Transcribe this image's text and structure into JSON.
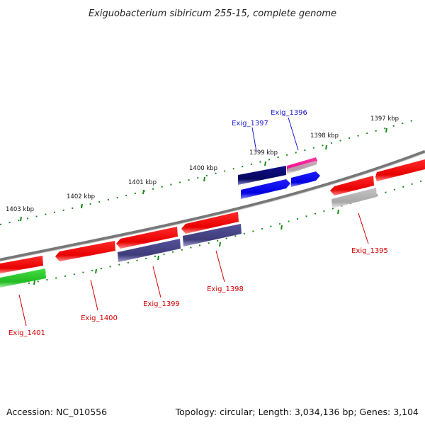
{
  "title": "Exiguobacterium sibiricum 255-15, complete genome",
  "footer": {
    "accession": "Accession: NC_010556",
    "info": "Topology: circular; Length: 3,034,136 bp; Genes: 3,104"
  },
  "ruler_labels": [
    "1397 kbp",
    "1398 kbp",
    "1399 kbp",
    "1400 kbp",
    "1401 kbp",
    "1402 kbp",
    "1403 kbp"
  ],
  "gene_labels": [
    {
      "id": "Exig_1396",
      "color": "#1a1acc"
    },
    {
      "id": "Exig_1397",
      "color": "#1a1acc"
    },
    {
      "id": "Exig_1395",
      "color": "#d40000"
    },
    {
      "id": "Exig_1398",
      "color": "#d40000"
    },
    {
      "id": "Exig_1399",
      "color": "#d40000"
    },
    {
      "id": "Exig_1400",
      "color": "#d40000"
    },
    {
      "id": "Exig_1401",
      "color": "#d40000"
    }
  ],
  "colors": {
    "backbone": "#7a7a7a",
    "cds_red": "#ff0000",
    "cds_purple": "#4a4888",
    "cds_navy": "#0a0a78",
    "cds_blue": "#0000ff",
    "cds_magenta": "#ff1493",
    "cds_grey": "#b0b0b0",
    "cds_green": "#33cc33",
    "tick_green": "#1a8a1a"
  }
}
